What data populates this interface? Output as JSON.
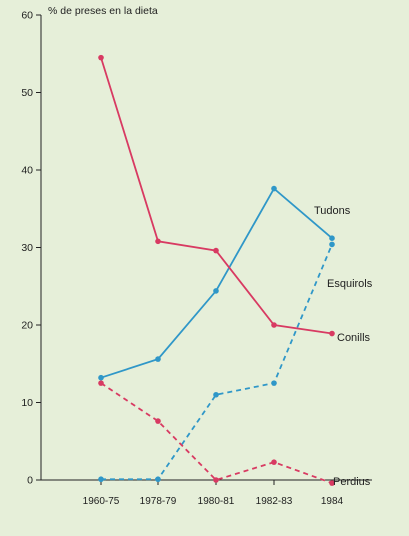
{
  "chart_data": {
    "type": "line",
    "title": "",
    "xlabel": "",
    "ylabel": "% de preses en la dieta",
    "ylim": [
      0,
      60
    ],
    "yticks": [
      0,
      10,
      20,
      30,
      40,
      50,
      60
    ],
    "categories": [
      "1960-75",
      "1978-79",
      "1980-81",
      "1982-83",
      "1984"
    ],
    "grid": false,
    "legend": "labels at line ends",
    "series": [
      {
        "name": "Tudons",
        "color": "#2f97c8",
        "line_style": "solid",
        "values": [
          13.2,
          15.6,
          24.4,
          37.6,
          31.2
        ]
      },
      {
        "name": "Esquirols",
        "color": "#2f97c8",
        "line_style": "dashed",
        "values": [
          0.1,
          0.1,
          11.0,
          12.5,
          30.4
        ]
      },
      {
        "name": "Conills",
        "color": "#d83a62",
        "line_style": "solid",
        "values": [
          54.5,
          30.8,
          29.6,
          20.0,
          18.9
        ]
      },
      {
        "name": "Perdius",
        "color": "#d83a62",
        "line_style": "dashed",
        "values": [
          12.5,
          7.6,
          0.0,
          2.3,
          -0.4
        ]
      }
    ]
  }
}
